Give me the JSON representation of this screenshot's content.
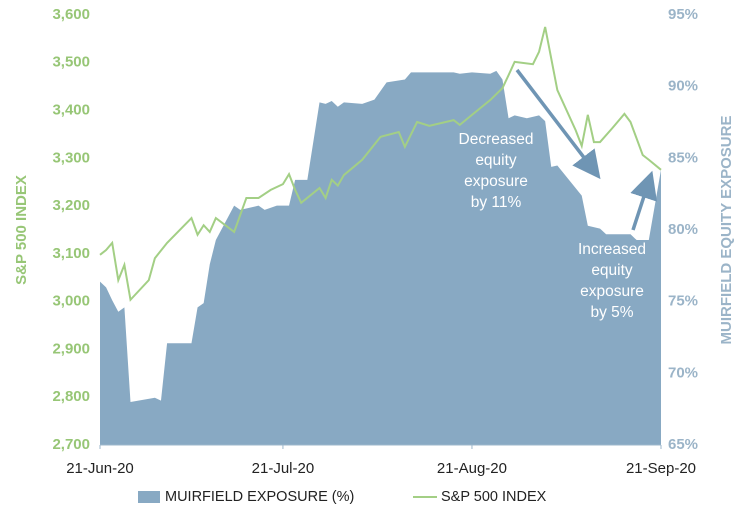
{
  "chart_data": {
    "type": "area-line",
    "y_label": "S&P 500 INDEX",
    "y2_label": "MUIRFIELD EQUITY EXPOSURE",
    "xlim": [
      "2020-06-21",
      "2020-09-21"
    ],
    "xticks": [
      {
        "value": "2020-06-21",
        "label": "21-Jun-20"
      },
      {
        "value": "2020-07-21",
        "label": "21-Jul-20"
      },
      {
        "value": "2020-08-21",
        "label": "21-Aug-20"
      },
      {
        "value": "2020-09-21",
        "label": "21-Sep-20"
      }
    ],
    "ylim": [
      2700,
      3600
    ],
    "yticks": [
      {
        "value": 2700,
        "label": "2,700"
      },
      {
        "value": 2800,
        "label": "2,800"
      },
      {
        "value": 2900,
        "label": "2,900"
      },
      {
        "value": 3000,
        "label": "3,000"
      },
      {
        "value": 3100,
        "label": "3,100"
      },
      {
        "value": 3200,
        "label": "3,200"
      },
      {
        "value": 3300,
        "label": "3,300"
      },
      {
        "value": 3400,
        "label": "3,400"
      },
      {
        "value": 3500,
        "label": "3,500"
      },
      {
        "value": 3600,
        "label": "3,600"
      }
    ],
    "y2lim": [
      65,
      95
    ],
    "y2ticks": [
      {
        "value": 65,
        "label": "65%"
      },
      {
        "value": 70,
        "label": "70%"
      },
      {
        "value": 75,
        "label": "75%"
      },
      {
        "value": 80,
        "label": "80%"
      },
      {
        "value": 85,
        "label": "85%"
      },
      {
        "value": 90,
        "label": "90%"
      },
      {
        "value": 95,
        "label": "95%"
      }
    ],
    "series": [
      {
        "name": "MUIRFIELD EXPOSURE (%)",
        "kind": "area",
        "axis": "y2",
        "color": "#88a9c3",
        "x": [
          "2020-06-21",
          "2020-06-22",
          "2020-06-23",
          "2020-06-24",
          "2020-06-25",
          "2020-06-26",
          "2020-06-30",
          "2020-07-01",
          "2020-07-02",
          "2020-07-06",
          "2020-07-07",
          "2020-07-08",
          "2020-07-09",
          "2020-07-10",
          "2020-07-13",
          "2020-07-14",
          "2020-07-17",
          "2020-07-18",
          "2020-07-20",
          "2020-07-22",
          "2020-07-23",
          "2020-07-25",
          "2020-07-27",
          "2020-07-28",
          "2020-07-29",
          "2020-07-30",
          "2020-07-31",
          "2020-08-03",
          "2020-08-05",
          "2020-08-07",
          "2020-08-10",
          "2020-08-11",
          "2020-08-18",
          "2020-08-19",
          "2020-08-21",
          "2020-08-24",
          "2020-08-25",
          "2020-08-26",
          "2020-08-27",
          "2020-08-28",
          "2020-08-30",
          "2020-09-01",
          "2020-09-02",
          "2020-09-03",
          "2020-09-04",
          "2020-09-08",
          "2020-09-09",
          "2020-09-11",
          "2020-09-12",
          "2020-09-16",
          "2020-09-17",
          "2020-09-19",
          "2020-09-21"
        ],
        "values": [
          76.4,
          76.0,
          75.1,
          74.3,
          74.6,
          68.0,
          68.3,
          68.1,
          72.1,
          72.1,
          74.6,
          74.9,
          77.6,
          79.3,
          81.7,
          81.4,
          81.7,
          81.4,
          81.7,
          81.7,
          83.5,
          83.5,
          88.9,
          88.8,
          89.0,
          88.6,
          88.9,
          88.8,
          89.1,
          90.3,
          90.5,
          91.0,
          91.0,
          90.9,
          91.0,
          90.9,
          91.1,
          90.5,
          87.8,
          88.0,
          87.8,
          88.0,
          87.6,
          84.4,
          84.5,
          82.4,
          80.3,
          80.1,
          79.7,
          79.7,
          79.3,
          79.3,
          84.2
        ]
      },
      {
        "name": "S&P 500 INDEX",
        "kind": "line",
        "axis": "y",
        "color": "#a3cf85",
        "x": [
          "2020-06-21",
          "2020-06-22",
          "2020-06-23",
          "2020-06-24",
          "2020-06-25",
          "2020-06-26",
          "2020-06-29",
          "2020-06-30",
          "2020-07-02",
          "2020-07-06",
          "2020-07-07",
          "2020-07-08",
          "2020-07-09",
          "2020-07-10",
          "2020-07-13",
          "2020-07-15",
          "2020-07-17",
          "2020-07-19",
          "2020-07-21",
          "2020-07-22",
          "2020-07-23",
          "2020-07-24",
          "2020-07-27",
          "2020-07-28",
          "2020-07-29",
          "2020-07-30",
          "2020-07-31",
          "2020-08-03",
          "2020-08-06",
          "2020-08-09",
          "2020-08-10",
          "2020-08-12",
          "2020-08-14",
          "2020-08-18",
          "2020-08-19",
          "2020-08-21",
          "2020-08-24",
          "2020-08-26",
          "2020-08-27",
          "2020-08-28",
          "2020-08-31",
          "2020-09-01",
          "2020-09-02",
          "2020-09-04",
          "2020-09-07",
          "2020-09-08",
          "2020-09-09",
          "2020-09-10",
          "2020-09-11",
          "2020-09-13",
          "2020-09-15",
          "2020-09-16",
          "2020-09-18",
          "2020-09-19",
          "2020-09-21"
        ],
        "values": [
          3098,
          3108,
          3123,
          3045,
          3077,
          3004,
          3045,
          3091,
          3123,
          3175,
          3140,
          3160,
          3146,
          3175,
          3146,
          3217,
          3217,
          3234,
          3246,
          3267,
          3234,
          3207,
          3238,
          3217,
          3255,
          3243,
          3265,
          3297,
          3345,
          3355,
          3324,
          3376,
          3368,
          3380,
          3370,
          3391,
          3422,
          3447,
          3474,
          3502,
          3497,
          3523,
          3575,
          3443,
          3359,
          3326,
          3391,
          3334,
          3334,
          3363,
          3393,
          3376,
          3307,
          3297,
          3276
        ]
      }
    ],
    "annotations": [
      {
        "lines": [
          "Decreased",
          "equity",
          "exposure",
          "by 11%"
        ]
      },
      {
        "lines": [
          "Increased",
          "equity",
          "exposure",
          "by 5%"
        ]
      }
    ]
  }
}
